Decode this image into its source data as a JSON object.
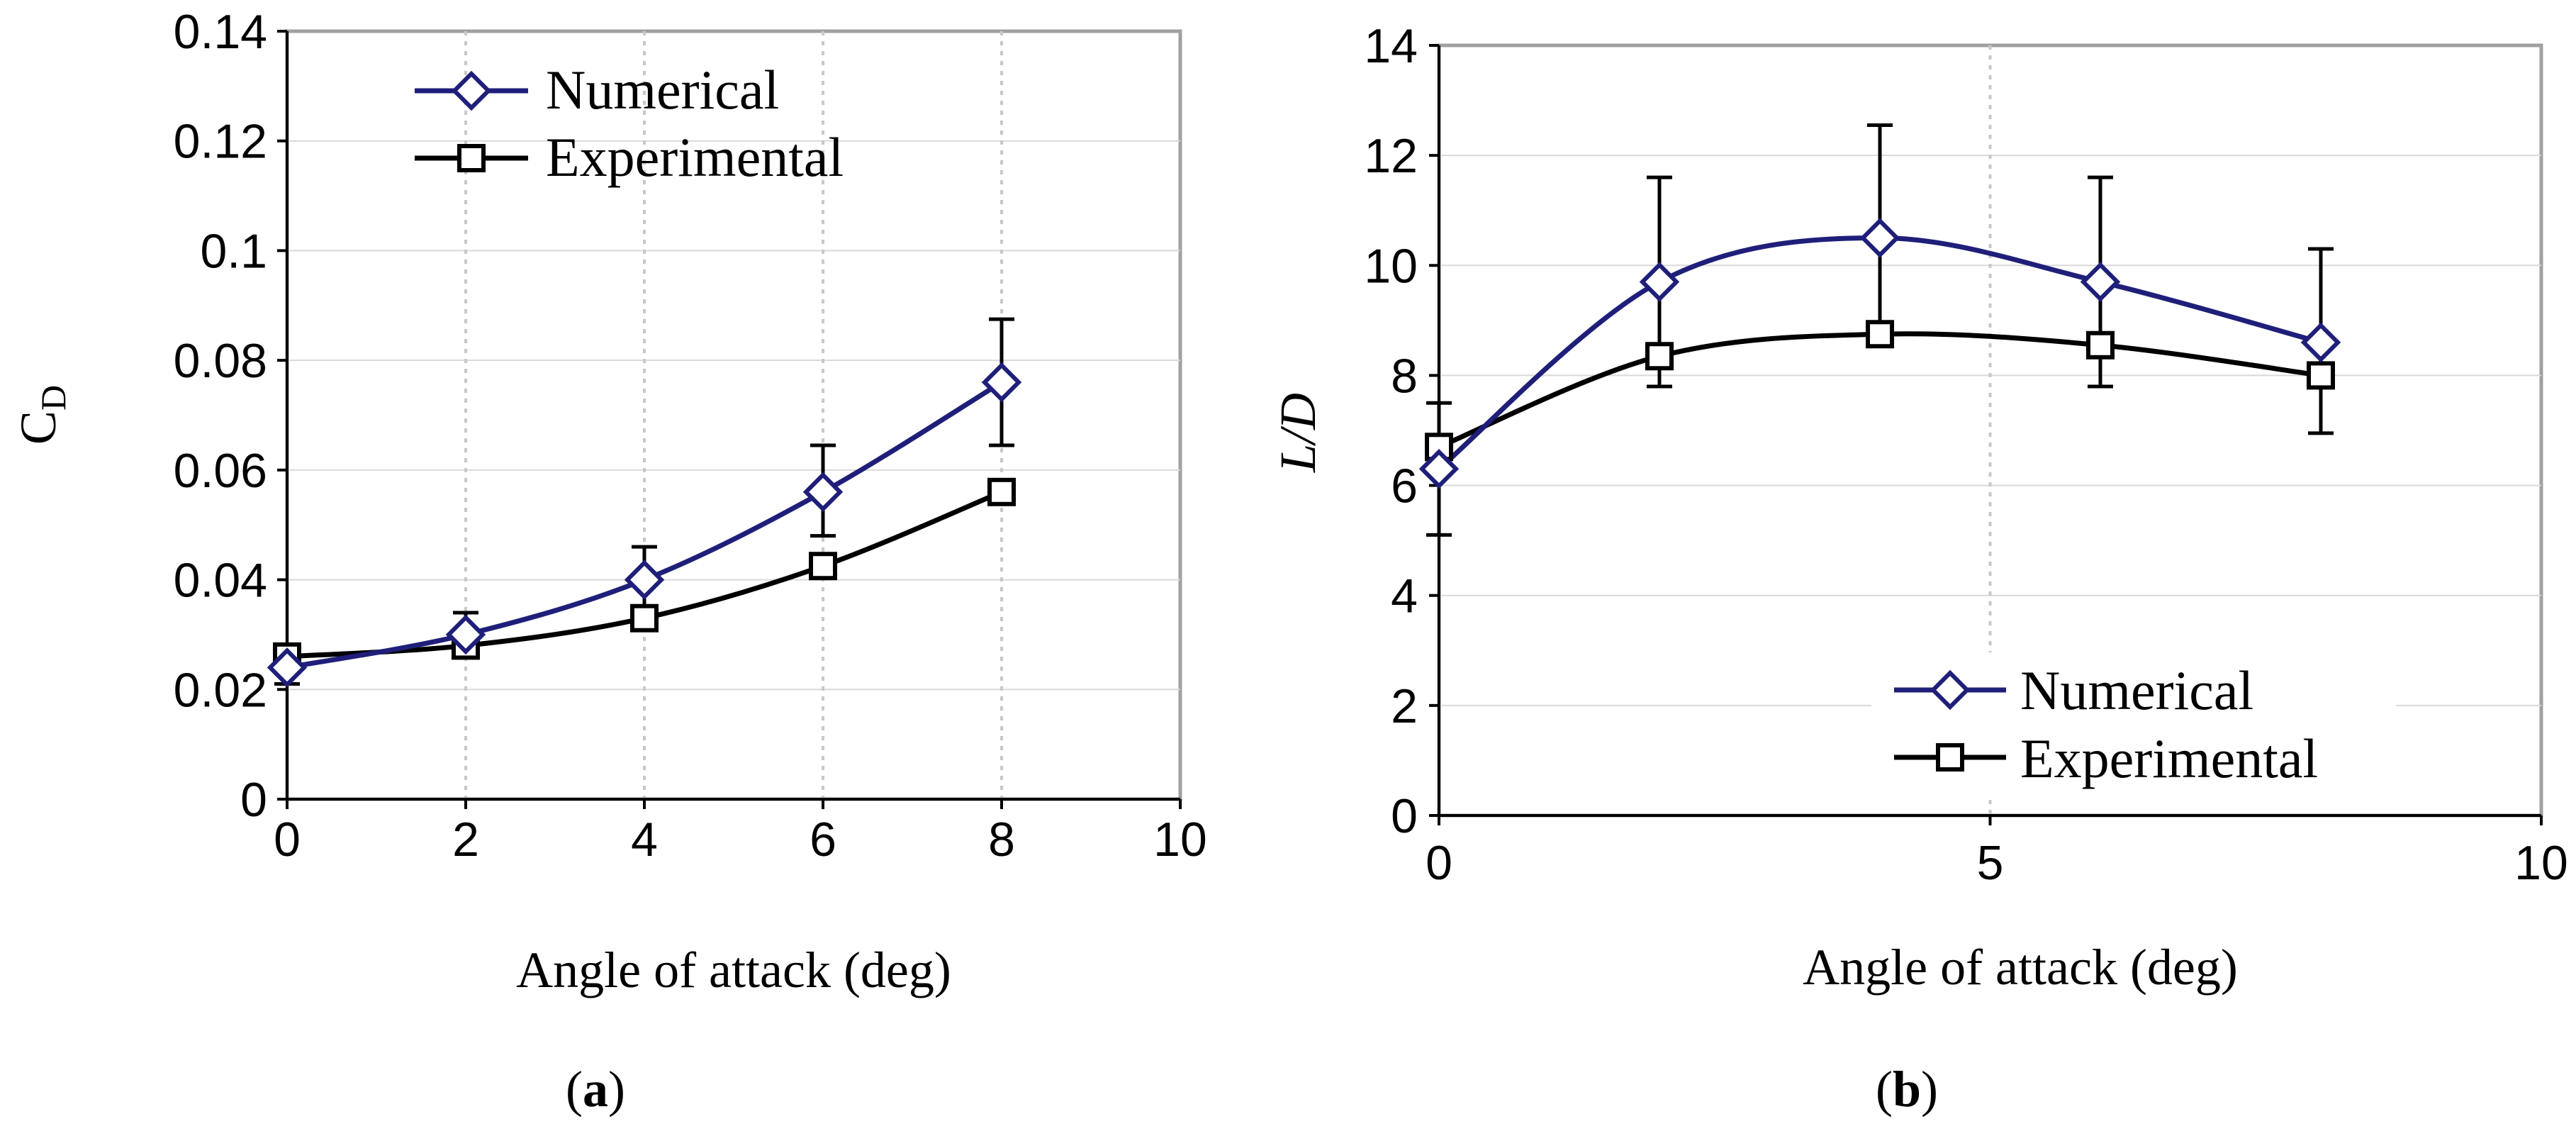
{
  "chart_data": [
    {
      "type": "line",
      "panel_label_open": "(",
      "panel_label_letter": "a",
      "panel_label_close": ")",
      "ylabel": "C",
      "ylabel_sub": "D",
      "xlabel": "Angle of attack (deg)",
      "xlim": [
        0,
        10
      ],
      "ylim": [
        0,
        0.14
      ],
      "xticks": [
        "0",
        "2",
        "4",
        "6",
        "8",
        "10"
      ],
      "xtick_values": [
        0,
        2,
        4,
        6,
        8,
        10
      ],
      "yticks": [
        "0",
        "0.02",
        "0.04",
        "0.06",
        "0.08",
        "0.1",
        "0.12",
        "0.14"
      ],
      "ytick_values": [
        0,
        0.02,
        0.04,
        0.06,
        0.08,
        0.1,
        0.12,
        0.14
      ],
      "vertical_grid": [
        2,
        4,
        6,
        8
      ],
      "legend_position": "top-center",
      "series": [
        {
          "name": "Numerical",
          "color": "#1f1f7a",
          "marker": "diamond",
          "x": [
            0,
            2,
            4,
            6,
            8
          ],
          "values": [
            0.024,
            0.03,
            0.04,
            0.056,
            0.076
          ]
        },
        {
          "name": "Experimental",
          "color": "#000000",
          "marker": "square",
          "x": [
            0,
            2,
            4,
            6,
            8
          ],
          "values": [
            0.026,
            0.028,
            0.033,
            0.0425,
            0.056
          ],
          "error_low": [
            0.021,
            0.0265,
            0.0325,
            0.048,
            0.0645
          ],
          "error_high": [
            0.0265,
            0.034,
            0.046,
            0.0645,
            0.0875
          ]
        }
      ]
    },
    {
      "type": "line",
      "panel_label_open": "(",
      "panel_label_letter": "b",
      "panel_label_close": ")",
      "ylabel": "L/D",
      "xlabel": "Angle of attack (deg)",
      "xlim": [
        0,
        10
      ],
      "ylim": [
        0,
        14
      ],
      "xticks": [
        "0",
        "5",
        "10"
      ],
      "xtick_values": [
        0,
        5,
        10
      ],
      "yticks": [
        "0",
        "2",
        "4",
        "6",
        "8",
        "10",
        "12",
        "14"
      ],
      "ytick_values": [
        0,
        2,
        4,
        6,
        8,
        10,
        12,
        14
      ],
      "vertical_grid": [
        5
      ],
      "legend_position": "bottom-right",
      "series": [
        {
          "name": "Numerical",
          "color": "#1f1f7a",
          "marker": "diamond",
          "x": [
            0,
            2,
            4,
            6,
            8
          ],
          "values": [
            6.3,
            9.7,
            10.5,
            9.7,
            8.6
          ]
        },
        {
          "name": "Experimental",
          "color": "#000000",
          "marker": "square",
          "x": [
            0,
            2,
            4,
            6,
            8
          ],
          "values": [
            6.7,
            8.35,
            8.75,
            8.55,
            8.0
          ],
          "error_low": [
            5.1,
            7.8,
            8.6,
            7.8,
            6.95
          ],
          "error_high": [
            7.5,
            11.6,
            12.55,
            11.6,
            10.3
          ]
        }
      ]
    }
  ]
}
